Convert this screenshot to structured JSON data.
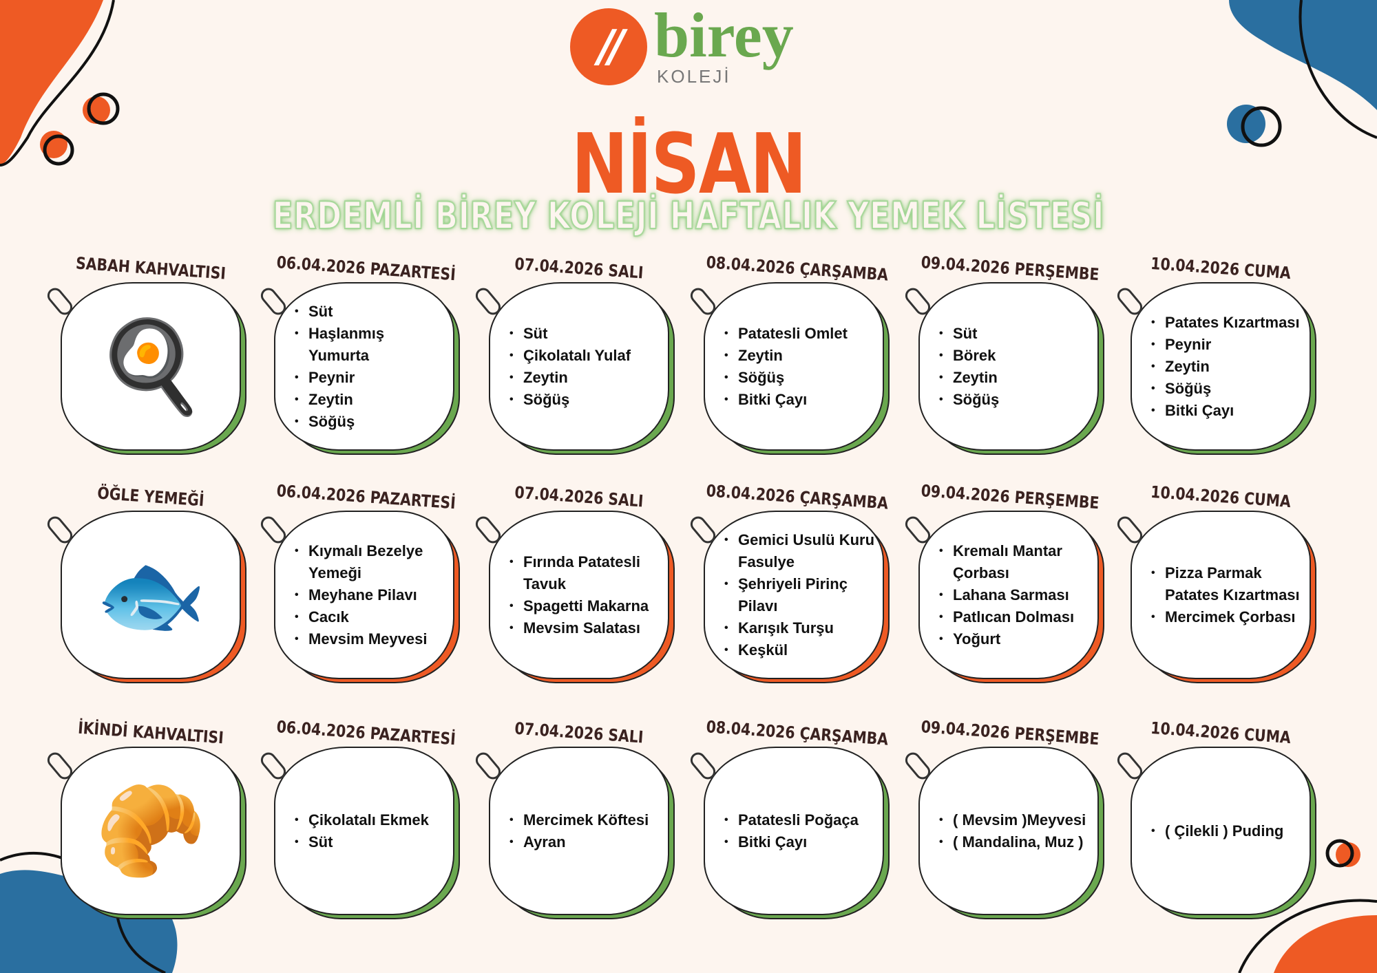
{
  "logo": {
    "name": "birey",
    "sub": "KOLEJİ"
  },
  "title": "NİSAN",
  "subtitle": "ERDEMLİ BİREY KOLEJİ HAFTALIK YEMEK LİSTESİ",
  "colors": {
    "orange": "#ee5a24",
    "green": "#6aa84f",
    "blue": "#2a6fa0",
    "background": "#fdf5ef"
  },
  "days": [
    "06.04.2026 PAZARTESİ",
    "07.04.2026 SALI",
    "08.04.2026 ÇARŞAMBA",
    "09.04.2026 PERŞEMBE",
    "10.04.2026 CUMA"
  ],
  "meals": [
    {
      "label": "SABAH KAHVALTISI",
      "image": "breakfast-plate",
      "accent": "#6aa84f",
      "menus": [
        [
          "Süt",
          "Haşlanmış Yumurta",
          "Peynir",
          "Zeytin",
          "Söğüş"
        ],
        [
          "Süt",
          "Çikolatalı Yulaf",
          "Zeytin",
          "Söğüş"
        ],
        [
          "Patatesli Omlet",
          "Zeytin",
          "Söğüş",
          "Bitki Çayı"
        ],
        [
          "Süt",
          "Börek",
          "Zeytin",
          "Söğüş"
        ],
        [
          "Patates Kızartması",
          "Peynir",
          "Zeytin",
          "Söğüş",
          "Bitki Çayı"
        ]
      ]
    },
    {
      "label": "ÖĞLE YEMEĞİ",
      "image": "fish-plate",
      "accent": "#ee5a24",
      "menus": [
        [
          "Kıymalı Bezelye Yemeği",
          "Meyhane Pilavı",
          "Cacık",
          "Mevsim Meyvesi"
        ],
        [
          "Fırında Patatesli Tavuk",
          "Spagetti Makarna",
          "Mevsim Salatası"
        ],
        [
          "Gemici Usulü Kuru Fasulye",
          "Şehriyeli Pirinç Pilavı",
          "Karışık Turşu",
          "Keşkül"
        ],
        [
          "Kremalı Mantar Çorbası",
          "Lahana Sarması",
          "Patlıcan Dolması",
          "Yoğurt"
        ],
        [
          "Pizza Parmak Patates Kızartması",
          "Mercimek Çorbası"
        ]
      ]
    },
    {
      "label": "İKİNDİ KAHVALTISI",
      "image": "croissant-plate",
      "accent": "#6aa84f",
      "menus": [
        [
          "Çikolatalı Ekmek",
          "Süt"
        ],
        [
          "Mercimek Köftesi",
          "Ayran"
        ],
        [
          "Patatesli Poğaça",
          "Bitki Çayı"
        ],
        [
          "( Mevsim )Meyvesi",
          "( Mandalina, Muz )"
        ],
        [
          "( Çilekli ) Puding"
        ]
      ]
    }
  ]
}
